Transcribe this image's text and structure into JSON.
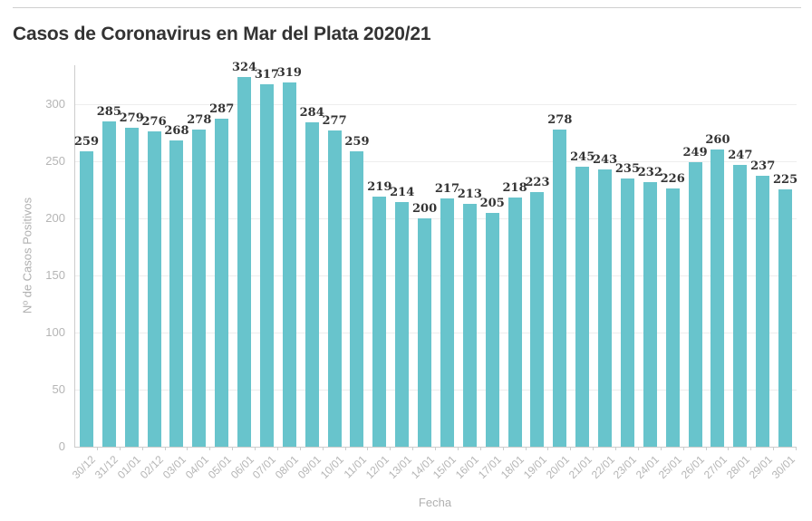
{
  "page": {
    "title": "Casos de Coronavirus en Mar del Plata 2020/21"
  },
  "chart_data": {
    "type": "bar",
    "title": "Casos de Coronavirus en Mar del Plata 2020/21",
    "xlabel": "Fecha",
    "ylabel": "Nº de Casos  Positivos",
    "categories": [
      "30/12",
      "31/12",
      "01/01",
      "02/12",
      "03/01",
      "04/01",
      "05/01",
      "06/01",
      "07/01",
      "08/01",
      "09/01",
      "10/01",
      "11/01",
      "12/01",
      "13/01",
      "14/01",
      "15/01",
      "16/01",
      "17/01",
      "18/01",
      "19/01",
      "20/01",
      "21/01",
      "22/01",
      "23/01",
      "24/01",
      "25/01",
      "26/01",
      "27/01",
      "28/01",
      "29/01",
      "30/01"
    ],
    "values": [
      259,
      285,
      279,
      276,
      268,
      278,
      287,
      324,
      317,
      319,
      284,
      277,
      259,
      219,
      214,
      200,
      217,
      213,
      205,
      218,
      223,
      278,
      245,
      243,
      235,
      232,
      226,
      249,
      260,
      247,
      237,
      225
    ],
    "y_ticks": [
      0,
      50,
      100,
      150,
      200,
      250,
      300
    ],
    "ylim": [
      0,
      334
    ],
    "grid": "horizontal",
    "legend": "none",
    "bar_color": "#68c4cc",
    "value_label_color": "#333333",
    "axis_text_color": "#b5b5b5",
    "gridline_color": "#ededed",
    "axis_line_color": "#cccccc"
  }
}
